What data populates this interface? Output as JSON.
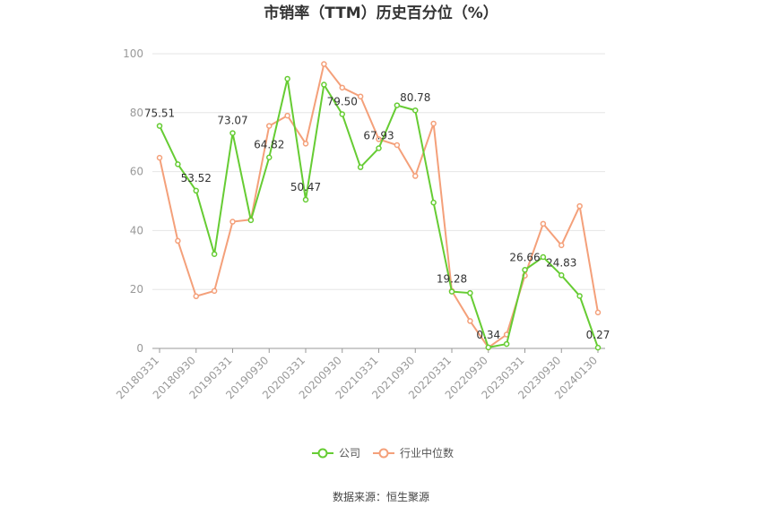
{
  "chart_data": {
    "type": "line",
    "title": "市销率（TTM）历史百分位（%）",
    "xlabel": "",
    "ylabel": "",
    "ylim": [
      0,
      100
    ],
    "yticks": [
      0,
      20,
      40,
      60,
      80,
      100
    ],
    "grid": true,
    "legend_position": "bottom",
    "x_tick_labels": [
      "20180331",
      "20180930",
      "20190331",
      "20190930",
      "20200331",
      "20200930",
      "20210331",
      "20210930",
      "20220331",
      "20220930",
      "20230331",
      "20230930",
      "20240130"
    ],
    "x": [
      "20180331",
      "20180630",
      "20180930",
      "20181231",
      "20190331",
      "20190630",
      "20190930",
      "20191231",
      "20200331",
      "20200630",
      "20200930",
      "20201231",
      "20210331",
      "20210630",
      "20210930",
      "20211231",
      "20220331",
      "20220630",
      "20220930",
      "20221231",
      "20230331",
      "20230630",
      "20230930",
      "20231231",
      "20240130"
    ],
    "series": [
      {
        "name": "公司",
        "color": "#66cc33",
        "values": [
          75.51,
          62.5,
          53.52,
          32.0,
          73.07,
          43.5,
          64.82,
          91.5,
          50.47,
          89.5,
          79.5,
          61.5,
          67.93,
          82.5,
          80.78,
          49.5,
          19.28,
          18.8,
          0.34,
          1.5,
          26.66,
          31.0,
          24.83,
          17.8,
          0.27
        ]
      },
      {
        "name": "行业中位数",
        "color": "#f4a07a",
        "values": [
          64.7,
          36.5,
          17.7,
          19.5,
          43.0,
          43.7,
          75.5,
          79.0,
          69.5,
          96.5,
          88.5,
          85.5,
          71.0,
          69.0,
          58.5,
          76.3,
          19.5,
          9.3,
          0.3,
          4.7,
          24.7,
          42.3,
          35.0,
          48.3,
          12.2
        ]
      }
    ],
    "data_labels": [
      {
        "index": 0,
        "text": "75.51"
      },
      {
        "index": 2,
        "text": "53.52"
      },
      {
        "index": 4,
        "text": "73.07"
      },
      {
        "index": 6,
        "text": "64.82"
      },
      {
        "index": 8,
        "text": "50.47"
      },
      {
        "index": 10,
        "text": "79.50"
      },
      {
        "index": 12,
        "text": "67.93"
      },
      {
        "index": 14,
        "text": "80.78"
      },
      {
        "index": 16,
        "text": "19.28"
      },
      {
        "index": 18,
        "text": "0.34"
      },
      {
        "index": 20,
        "text": "26.66"
      },
      {
        "index": 22,
        "text": "24.83"
      },
      {
        "index": 24,
        "text": "0.27"
      }
    ]
  },
  "footer": {
    "source": "数据来源：恒生聚源"
  }
}
